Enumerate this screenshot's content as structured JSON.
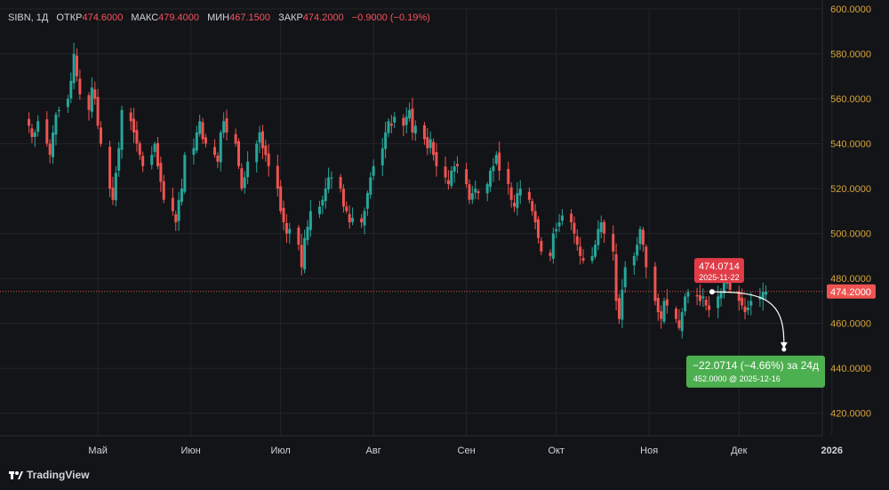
{
  "header": {
    "symbol": "SIBN, 1Д",
    "open_label": "ОТКР",
    "open": "474.6000",
    "high_label": "МАКС",
    "high": "479.4000",
    "low_label": "МИН",
    "low": "467.1500",
    "close_label": "ЗАКР",
    "close": "474.2000",
    "change": "−0.9000 (−0.19%)"
  },
  "brand": {
    "name": "TradingView",
    "icon": "tradingview-logo-icon"
  },
  "colors": {
    "up": "#26a69a",
    "down": "#ef5350",
    "background": "#131417",
    "grid": "#22242a",
    "axis_text": "#d9a43a",
    "price_line": "#ef5350",
    "forecast": "#4caf50"
  },
  "chart_data": {
    "type": "candlestick",
    "y_range": [
      410,
      600
    ],
    "y_ticks": [
      "420.0000",
      "440.0000",
      "460.0000",
      "480.0000",
      "500.0000",
      "520.0000",
      "540.0000",
      "560.0000",
      "580.0000",
      "600.0000"
    ],
    "y_tick_values": [
      420,
      440,
      460,
      480,
      500,
      520,
      540,
      560,
      580,
      600
    ],
    "x_labels": [
      "Май",
      "Июн",
      "Июл",
      "Авг",
      "Сен",
      "Окт",
      "Ноя",
      "Дек",
      "2026"
    ],
    "x_label_dates": [
      "2025-05-01",
      "2025-06-01",
      "2025-07-01",
      "2025-08-01",
      "2025-09-01",
      "2025-10-01",
      "2025-11-01",
      "2025-12-01",
      "2026-01-01"
    ],
    "last_price": "474.2000",
    "last_price_value": 474.2,
    "start_date": "2025-04-08",
    "closes": [
      548,
      543,
      545,
      550,
      540,
      535,
      545,
      553,
      555,
      560,
      568,
      580,
      570,
      562,
      555,
      565,
      560,
      548,
      540,
      520,
      515,
      527,
      538,
      555,
      550,
      545,
      540,
      535,
      530,
      535,
      540,
      530,
      523,
      515,
      510,
      505,
      515,
      520,
      535,
      538,
      545,
      550,
      542,
      540,
      535,
      532,
      545,
      550,
      545,
      540,
      530,
      520,
      525,
      532,
      540,
      545,
      538,
      535,
      530,
      520,
      510,
      505,
      500,
      502,
      495,
      485,
      498,
      503,
      510,
      512,
      515,
      520,
      525,
      525,
      520,
      512,
      510,
      505,
      507,
      505,
      510,
      518,
      525,
      530,
      538,
      545,
      550,
      548,
      552,
      548,
      552,
      555,
      545,
      548,
      542,
      538,
      542,
      535,
      530,
      525,
      522,
      528,
      530,
      530,
      522,
      515,
      518,
      520,
      518,
      522,
      528,
      530,
      535,
      528,
      522,
      515,
      512,
      518,
      520,
      515,
      510,
      505,
      498,
      492,
      490,
      500,
      502,
      505,
      508,
      505,
      500,
      495,
      490,
      488,
      490,
      495,
      502,
      505,
      500,
      492,
      470,
      462,
      475,
      485,
      490,
      495,
      502,
      495,
      485,
      470,
      465,
      462,
      470,
      468,
      462,
      458,
      465,
      472,
      474,
      472,
      470,
      472,
      468,
      466,
      472,
      474,
      478,
      480,
      475,
      470,
      468,
      465,
      467,
      470,
      472,
      474,
      474.2
    ],
    "forecast": {
      "from_label": "474.0714",
      "from_date": "2025-11-22",
      "from_value": 474.0714,
      "to_value": 452.0,
      "change_text": "−22.0714 (−4.66%) за 24д",
      "target_text": "452.0000 @ 2025-12-16"
    }
  }
}
